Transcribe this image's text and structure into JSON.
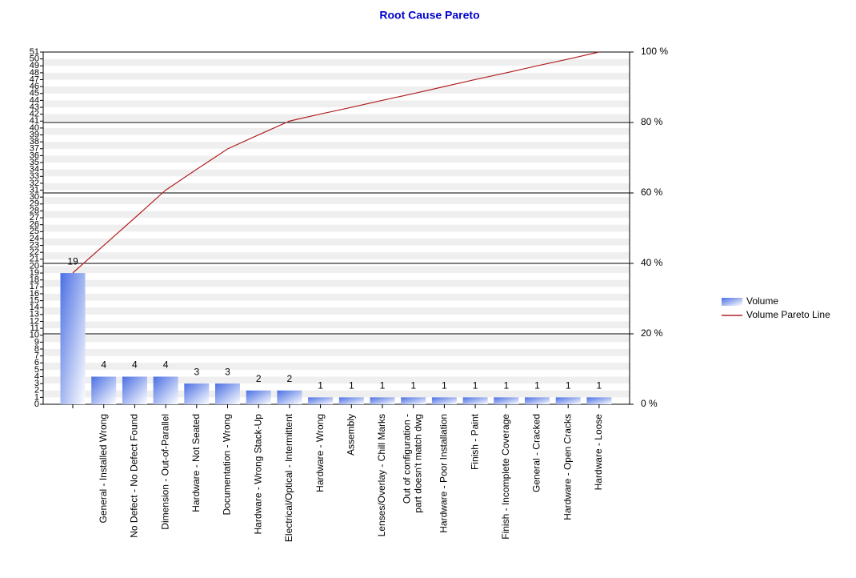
{
  "chart_data": {
    "type": "pareto",
    "title": "Root Cause Pareto",
    "categories": [
      null,
      "General - Installed Wrong",
      "No Defect - No Defect Found",
      "Dimension - Out-of-Parallel",
      "Hardware - Not Seated",
      "Documentation - Wrong",
      "Hardware - Wrong Stack-Up",
      "Electrical/Optical - Intermittent",
      "Hardware - Wrong",
      "Assembly",
      "Lenses/Overlay - Chill Marks",
      "Out of configuration -\npart doesn't match dwg",
      "Hardware - Poor Installation",
      "Finish - Paint",
      "Finish - Incomplete Coverage",
      "General - Cracked",
      "Hardware - Open Cracks",
      "Hardware - Loose"
    ],
    "series": [
      {
        "name": "Volume",
        "color": "#4a6fe3",
        "values": [
          19,
          4,
          4,
          4,
          3,
          3,
          2,
          2,
          1,
          1,
          1,
          1,
          1,
          1,
          1,
          1,
          1,
          1
        ]
      },
      {
        "name": "Volume Pareto Line",
        "color": "#b22222",
        "axis": "y2",
        "values": [
          37.3,
          45.1,
          52.9,
          60.8,
          66.7,
          72.5,
          76.5,
          80.4,
          82.4,
          84.3,
          86.3,
          88.2,
          90.2,
          92.2,
          94.1,
          96.1,
          98.0,
          100
        ]
      }
    ],
    "ylim": [
      0,
      51
    ],
    "yticks": [
      0,
      1,
      2,
      3,
      4,
      5,
      6,
      7,
      8,
      9,
      10,
      11,
      12,
      13,
      14,
      15,
      16,
      17,
      18,
      19,
      20,
      21,
      22,
      23,
      24,
      25,
      26,
      27,
      28,
      29,
      30,
      31,
      32,
      33,
      34,
      35,
      36,
      37,
      38,
      39,
      40,
      41,
      42,
      43,
      44,
      45,
      46,
      47,
      48,
      49,
      50,
      51
    ],
    "y2lim": [
      0,
      100
    ],
    "y2ticks": [
      {
        "value": 0,
        "label": "0 %"
      },
      {
        "value": 20,
        "label": "20 %"
      },
      {
        "value": 40,
        "label": "40 %"
      },
      {
        "value": 60,
        "label": "60 %"
      },
      {
        "value": 80,
        "label": "80 %"
      },
      {
        "value": 100,
        "label": "100 %"
      }
    ],
    "legend": "right"
  }
}
